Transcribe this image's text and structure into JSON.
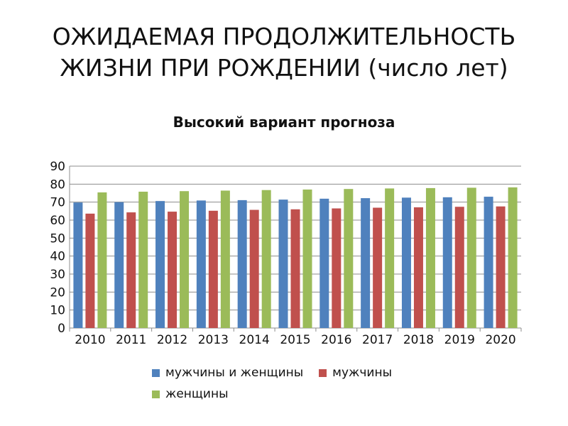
{
  "slide": {
    "title_line1": "ОЖИДАЕМАЯ ПРОДОЛЖИТЕЛЬНОСТЬ",
    "title_line2": "ЖИЗНИ ПРИ РОЖДЕНИИ (число лет)"
  },
  "chart_data": {
    "type": "bar",
    "title": "Высокий вариант прогноза",
    "xlabel": "",
    "ylabel": "",
    "ylim": [
      0,
      90
    ],
    "yticks": [
      0,
      10,
      20,
      30,
      40,
      50,
      60,
      70,
      80,
      90
    ],
    "grid": true,
    "legend_position": "bottom",
    "categories": [
      "2010",
      "2011",
      "2012",
      "2013",
      "2014",
      "2015",
      "2016",
      "2017",
      "2018",
      "2019",
      "2020"
    ],
    "series": [
      {
        "name": "мужчины и женщины",
        "color": "#4F81BD",
        "values": [
          69.8,
          70.0,
          70.6,
          70.9,
          71.1,
          71.4,
          71.9,
          72.2,
          72.5,
          72.7,
          73.0
        ]
      },
      {
        "name": "мужчины",
        "color": "#C0504D",
        "values": [
          63.6,
          64.3,
          64.7,
          65.2,
          65.7,
          66.0,
          66.5,
          66.9,
          67.1,
          67.4,
          67.6
        ]
      },
      {
        "name": "женщины",
        "color": "#9BBB59",
        "values": [
          75.4,
          75.8,
          76.1,
          76.4,
          76.7,
          77.0,
          77.3,
          77.6,
          77.8,
          78.0,
          78.2
        ]
      }
    ]
  }
}
